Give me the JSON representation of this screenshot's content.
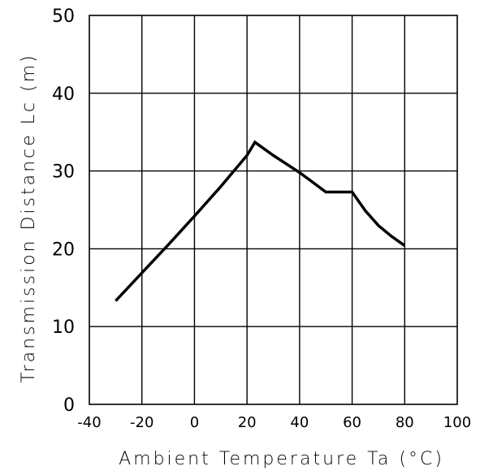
{
  "chart_data": {
    "type": "line",
    "title": "",
    "xlabel": "Ambient Temperature Ta (°C)",
    "ylabel": "Transmission Distance Lc (m)",
    "xlim": [
      -40,
      100
    ],
    "ylim": [
      0,
      50
    ],
    "x_ticks": [
      "-40",
      "-20",
      "0",
      "20",
      "40",
      "60",
      "80",
      "100"
    ],
    "y_ticks": [
      "0",
      "10",
      "20",
      "30",
      "40",
      "50"
    ],
    "grid": true,
    "series": [
      {
        "x": [
          -30,
          -20,
          -10,
          0,
          10,
          20,
          23,
          30,
          40,
          50,
          60,
          65,
          70,
          75,
          80
        ],
        "values": [
          13.3,
          16.9,
          20.5,
          24.2,
          28.0,
          32.0,
          33.7,
          32.0,
          29.8,
          27.3,
          27.3,
          24.9,
          23.0,
          21.6,
          20.4
        ]
      }
    ]
  }
}
